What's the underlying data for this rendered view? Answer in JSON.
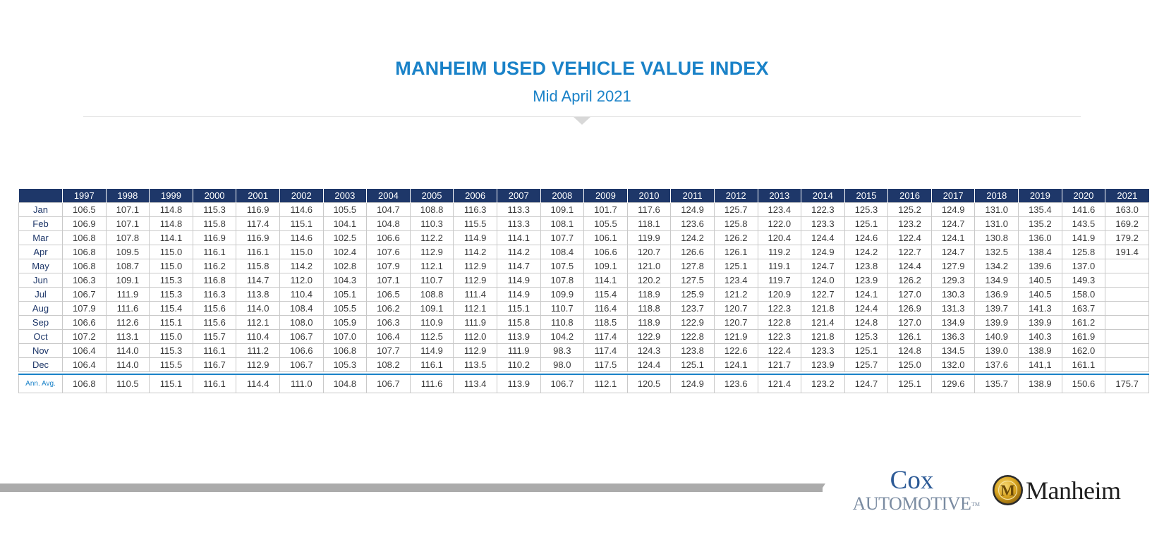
{
  "header": {
    "title": "MANHEIM USED VEHICLE VALUE INDEX",
    "subtitle": "Mid April 2021"
  },
  "table": {
    "corner": "",
    "years": [
      "1997",
      "1998",
      "1999",
      "2000",
      "2001",
      "2002",
      "2003",
      "2004",
      "2005",
      "2006",
      "2007",
      "2008",
      "2009",
      "2010",
      "2011",
      "2012",
      "2013",
      "2014",
      "2015",
      "2016",
      "2017",
      "2018",
      "2019",
      "2020",
      "2021"
    ],
    "rows": [
      {
        "month": "Jan",
        "values": [
          "106.5",
          "107.1",
          "114.8",
          "115.3",
          "116.9",
          "114.6",
          "105.5",
          "104.7",
          "108.8",
          "116.3",
          "113.3",
          "109.1",
          "101.7",
          "117.6",
          "124.9",
          "125.7",
          "123.4",
          "122.3",
          "125.3",
          "125.2",
          "124.9",
          "131.0",
          "135.4",
          "141.6",
          "163.0"
        ]
      },
      {
        "month": "Feb",
        "values": [
          "106.9",
          "107.1",
          "114.8",
          "115.8",
          "117.4",
          "115.1",
          "104.1",
          "104.8",
          "110.3",
          "115.5",
          "113.3",
          "108.1",
          "105.5",
          "118.1",
          "123.6",
          "125.8",
          "122.0",
          "123.3",
          "125.1",
          "123.2",
          "124.7",
          "131.0",
          "135.2",
          "143.5",
          "169.2"
        ]
      },
      {
        "month": "Mar",
        "values": [
          "106.8",
          "107.8",
          "114.1",
          "116.9",
          "116.9",
          "114.6",
          "102.5",
          "106.6",
          "112.2",
          "114.9",
          "114.1",
          "107.7",
          "106.1",
          "119.9",
          "124.2",
          "126.2",
          "120.4",
          "124.4",
          "124.6",
          "122.4",
          "124.1",
          "130.8",
          "136.0",
          "141.9",
          "179.2"
        ]
      },
      {
        "month": "Apr",
        "values": [
          "106.8",
          "109.5",
          "115.0",
          "116.1",
          "116.1",
          "115.0",
          "102.4",
          "107.6",
          "112.9",
          "114.2",
          "114.2",
          "108.4",
          "106.6",
          "120.7",
          "126.6",
          "126.1",
          "119.2",
          "124.9",
          "124.2",
          "122.7",
          "124.7",
          "132.5",
          "138.4",
          "125.8",
          "191.4"
        ]
      },
      {
        "month": "May",
        "values": [
          "106.8",
          "108.7",
          "115.0",
          "116.2",
          "115.8",
          "114.2",
          "102.8",
          "107.9",
          "112.1",
          "112.9",
          "114.7",
          "107.5",
          "109.1",
          "121.0",
          "127.8",
          "125.1",
          "119.1",
          "124.7",
          "123.8",
          "124.4",
          "127.9",
          "134.2",
          "139.6",
          "137.0",
          ""
        ]
      },
      {
        "month": "Jun",
        "values": [
          "106.3",
          "109.1",
          "115.3",
          "116.8",
          "114.7",
          "112.0",
          "104.3",
          "107.1",
          "110.7",
          "112.9",
          "114.9",
          "107.8",
          "114.1",
          "120.2",
          "127.5",
          "123.4",
          "119.7",
          "124.0",
          "123.9",
          "126.2",
          "129.3",
          "134.9",
          "140.5",
          "149.3",
          ""
        ]
      },
      {
        "month": "Jul",
        "values": [
          "106.7",
          "111.9",
          "115.3",
          "116.3",
          "113.8",
          "110.4",
          "105.1",
          "106.5",
          "108.8",
          "111.4",
          "114.9",
          "109.9",
          "115.4",
          "118.9",
          "125.9",
          "121.2",
          "120.9",
          "122.7",
          "124.1",
          "127.0",
          "130.3",
          "136.9",
          "140.5",
          "158.0",
          ""
        ]
      },
      {
        "month": "Aug",
        "values": [
          "107.9",
          "111.6",
          "115.4",
          "115.6",
          "114.0",
          "108.4",
          "105.5",
          "106.2",
          "109.1",
          "112.1",
          "115.1",
          "110.7",
          "116.4",
          "118.8",
          "123.7",
          "120.7",
          "122.3",
          "121.8",
          "124.4",
          "126.9",
          "131.3",
          "139.7",
          "141.3",
          "163.7",
          ""
        ]
      },
      {
        "month": "Sep",
        "values": [
          "106.6",
          "112.6",
          "115.1",
          "115.6",
          "112.1",
          "108.0",
          "105.9",
          "106.3",
          "110.9",
          "111.9",
          "115.8",
          "110.8",
          "118.5",
          "118.9",
          "122.9",
          "120.7",
          "122.8",
          "121.4",
          "124.8",
          "127.0",
          "134.9",
          "139.9",
          "139.9",
          "161.2",
          ""
        ]
      },
      {
        "month": "Oct",
        "values": [
          "107.2",
          "113.1",
          "115.0",
          "115.7",
          "110.4",
          "106.7",
          "107.0",
          "106.4",
          "112.5",
          "112.0",
          "113.9",
          "104.2",
          "117.4",
          "122.9",
          "122.8",
          "121.9",
          "122.3",
          "121.8",
          "125.3",
          "126.1",
          "136.3",
          "140.9",
          "140.3",
          "161.9",
          ""
        ]
      },
      {
        "month": "Nov",
        "values": [
          "106.4",
          "114.0",
          "115.3",
          "116.1",
          "111.2",
          "106.6",
          "106.8",
          "107.7",
          "114.9",
          "112.9",
          "111.9",
          "98.3",
          "117.4",
          "124.3",
          "123.8",
          "122.6",
          "122.4",
          "123.3",
          "125.1",
          "124.8",
          "134.5",
          "139.0",
          "138.9",
          "162.0",
          ""
        ]
      },
      {
        "month": "Dec",
        "values": [
          "106.4",
          "114.0",
          "115.5",
          "116.7",
          "112.9",
          "106.7",
          "105.3",
          "108.2",
          "116.1",
          "113.5",
          "110.2",
          "98.0",
          "117.5",
          "124.4",
          "125.1",
          "124.1",
          "121.7",
          "123.9",
          "125.7",
          "125.0",
          "132.0",
          "137.6",
          "141,1",
          "161.1",
          ""
        ]
      }
    ],
    "annual": {
      "label": "Ann. Avg.",
      "values": [
        "106.8",
        "110.5",
        "115.1",
        "116.1",
        "114.4",
        "111.0",
        "104.8",
        "106.7",
        "111.6",
        "113.4",
        "113.9",
        "106.7",
        "112.1",
        "120.5",
        "124.9",
        "123.6",
        "121.4",
        "123.2",
        "124.7",
        "125.1",
        "129.6",
        "135.7",
        "138.9",
        "150.6",
        "175.7"
      ]
    }
  },
  "logos": {
    "cox_word": "Cox",
    "automotive_word": "Automotive",
    "tm": "TM",
    "manheim_word": "Manheim",
    "manheim_seal_letter": "M"
  },
  "colors": {
    "title_blue": "#1a82c8",
    "header_navy": "#1e3769",
    "footer_gray": "#ababab",
    "seal_gold": "#d9a520"
  }
}
